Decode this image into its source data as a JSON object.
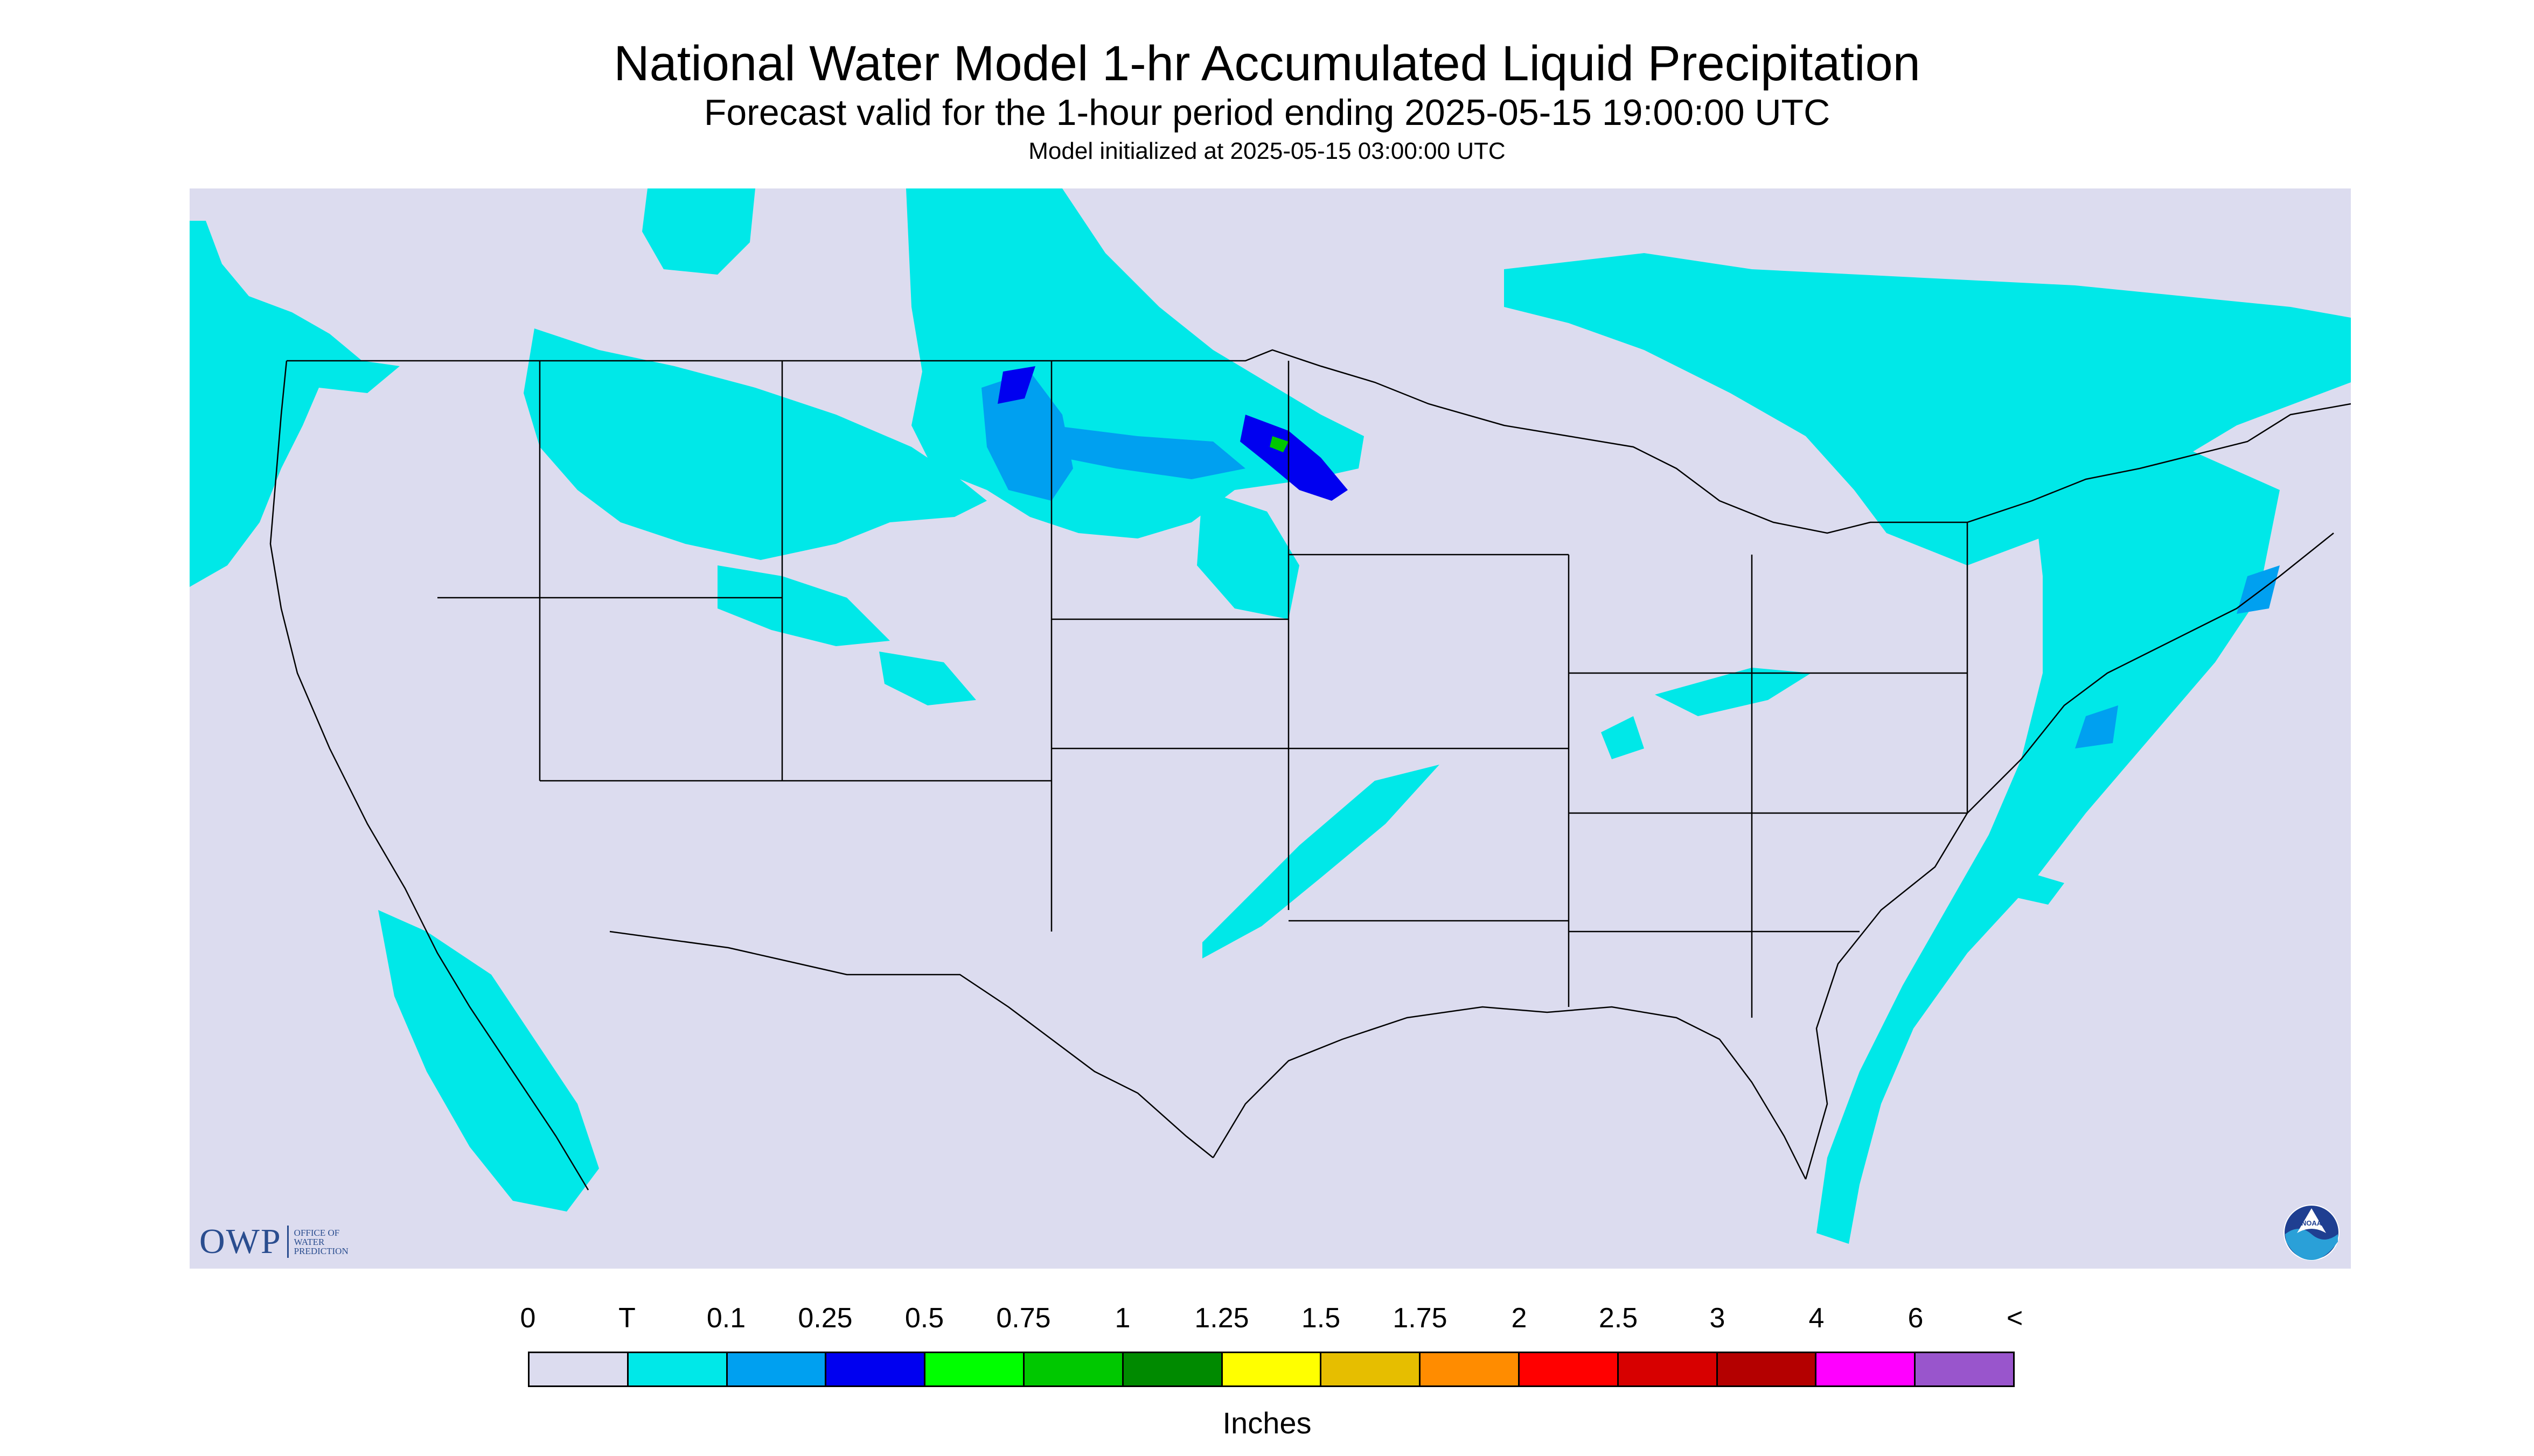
{
  "header": {
    "title": "National Water Model 1-hr Accumulated Liquid Precipitation",
    "subtitle": "Forecast valid for the 1-hour period ending 2025-05-15 19:00:00 UTC",
    "init_line": "Model initialized at 2025-05-15 03:00:00 UTC"
  },
  "logos": {
    "owp_acronym": "OWP",
    "owp_name_lines": [
      "OFFICE OF",
      "WATER",
      "PREDICTION"
    ],
    "noaa_text": "NOAA"
  },
  "colors": {
    "background": "#dcdcef",
    "outside_domain": "#ffffff",
    "boundaries": "#000000"
  },
  "legend": {
    "units_label": "Inches",
    "labels": [
      "0",
      "T",
      "0.1",
      "0.25",
      "0.5",
      "0.75",
      "1",
      "1.25",
      "1.5",
      "1.75",
      "2",
      "2.5",
      "3",
      "4",
      "6",
      "<"
    ],
    "bins": [
      {
        "from": "0",
        "to": "T",
        "color": "#dcdcef"
      },
      {
        "from": "T",
        "to": "0.1",
        "color": "#00e8e8"
      },
      {
        "from": "0.1",
        "to": "0.25",
        "color": "#00a0f0"
      },
      {
        "from": "0.25",
        "to": "0.5",
        "color": "#0000f0"
      },
      {
        "from": "0.5",
        "to": "0.75",
        "color": "#00ff00"
      },
      {
        "from": "0.75",
        "to": "1",
        "color": "#00c800"
      },
      {
        "from": "1",
        "to": "1.25",
        "color": "#008a00"
      },
      {
        "from": "1.25",
        "to": "1.5",
        "color": "#ffff00"
      },
      {
        "from": "1.5",
        "to": "1.75",
        "color": "#e6be00"
      },
      {
        "from": "1.75",
        "to": "2",
        "color": "#ff8c00"
      },
      {
        "from": "2",
        "to": "2.5",
        "color": "#ff0000"
      },
      {
        "from": "2.5",
        "to": "3",
        "color": "#d70000"
      },
      {
        "from": "3",
        "to": "4",
        "color": "#b40000"
      },
      {
        "from": "4",
        "to": "6",
        "color": "#ff00ff"
      },
      {
        "from": "6",
        "to": "<",
        "color": "#9955cc"
      }
    ]
  },
  "precipitation_areas": [
    {
      "name": "pacific-northwest",
      "color": "#00e8e8"
    },
    {
      "name": "northern-rockies",
      "color": "#00e8e8"
    },
    {
      "name": "northern-plains",
      "color": "#00e8e8"
    },
    {
      "name": "north-dakota-core",
      "color": "#00a0f0"
    },
    {
      "name": "minnesota-core",
      "color": "#0000f0"
    },
    {
      "name": "minnesota-peak",
      "color": "#00c800"
    },
    {
      "name": "southern-plains-band",
      "color": "#00e8e8"
    },
    {
      "name": "ohio-valley",
      "color": "#00e8e8"
    },
    {
      "name": "great-lakes-canada",
      "color": "#00e8e8"
    },
    {
      "name": "northeast-atlantic",
      "color": "#00e8e8"
    },
    {
      "name": "southwest-pacific",
      "color": "#00e8e8"
    }
  ]
}
